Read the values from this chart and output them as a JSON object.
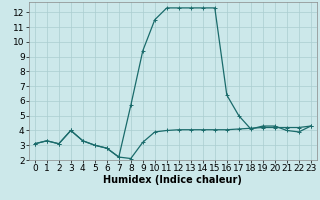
{
  "xlabel": "Humidex (Indice chaleur)",
  "background_color": "#cce8ea",
  "grid_color": "#aacdd0",
  "line_color": "#1a6b6b",
  "xlim": [
    -0.5,
    23.5
  ],
  "ylim": [
    2,
    12.7
  ],
  "yticks": [
    2,
    3,
    4,
    5,
    6,
    7,
    8,
    9,
    10,
    11,
    12
  ],
  "xticks": [
    0,
    1,
    2,
    3,
    4,
    5,
    6,
    7,
    8,
    9,
    10,
    11,
    12,
    13,
    14,
    15,
    16,
    17,
    18,
    19,
    20,
    21,
    22,
    23
  ],
  "series1_x": [
    0,
    1,
    2,
    3,
    4,
    5,
    6,
    7,
    8,
    9,
    10,
    11,
    12,
    13,
    14,
    15,
    16,
    17,
    18,
    19,
    20,
    21,
    22,
    23
  ],
  "series1_y": [
    3.1,
    3.3,
    3.1,
    4.0,
    3.3,
    3.0,
    2.8,
    2.2,
    2.1,
    3.2,
    3.9,
    4.0,
    4.05,
    4.05,
    4.05,
    4.05,
    4.05,
    4.1,
    4.15,
    4.2,
    4.2,
    4.2,
    4.2,
    4.3
  ],
  "series2_x": [
    0,
    1,
    2,
    3,
    4,
    5,
    6,
    7,
    8,
    9,
    10,
    11,
    12,
    13,
    14,
    15,
    16,
    17,
    18,
    19,
    20,
    21,
    22,
    23
  ],
  "series2_y": [
    3.1,
    3.3,
    3.1,
    4.0,
    3.3,
    3.0,
    2.8,
    2.2,
    5.7,
    9.4,
    11.5,
    12.3,
    12.3,
    12.3,
    12.3,
    12.3,
    6.4,
    5.0,
    4.1,
    4.3,
    4.3,
    4.0,
    3.9,
    4.3
  ],
  "xlabel_fontsize": 7,
  "tick_fontsize": 6.5,
  "linewidth": 0.9,
  "markersize": 2.5
}
